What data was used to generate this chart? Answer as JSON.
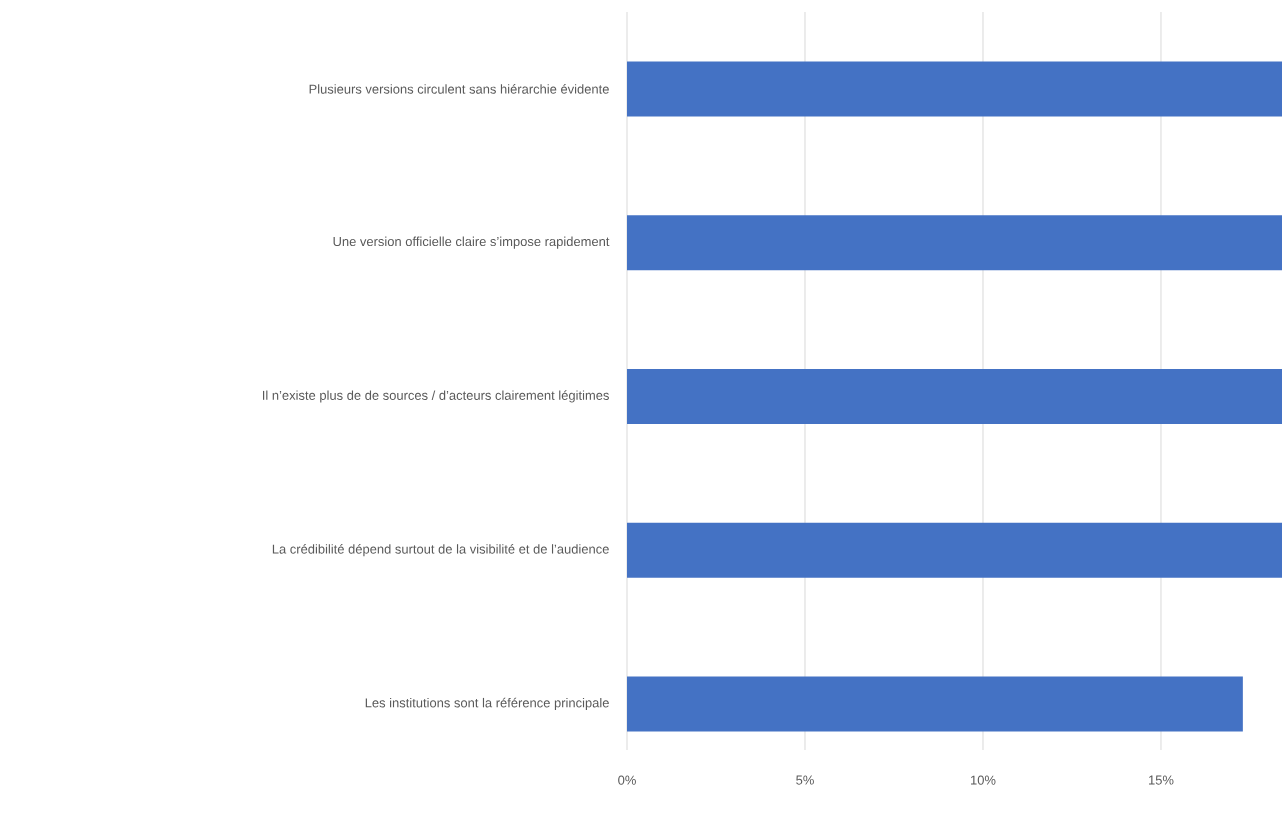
{
  "chart_data": {
    "type": "bar",
    "orientation": "horizontal",
    "categories": [
      "Plusieurs versions circulent sans hiérarchie évidente",
      "Une version officielle claire s’impose rapidement",
      "Il n’existe plus de de sources / d’acteurs clairement légitimes",
      "La crédibilité dépend surtout de la visibilité et de l’audience",
      "Les institutions sont la référence principale"
    ],
    "values": [
      18.4,
      18.4,
      18.4,
      18.4,
      17.3
    ],
    "color": "#4472c4",
    "xlim": [
      0,
      18.4
    ],
    "xticks": [
      {
        "value": 0,
        "label": "0%"
      },
      {
        "value": 5,
        "label": "5%"
      },
      {
        "value": 10,
        "label": "10%"
      },
      {
        "value": 15,
        "label": "15%"
      }
    ],
    "grid": "x"
  }
}
